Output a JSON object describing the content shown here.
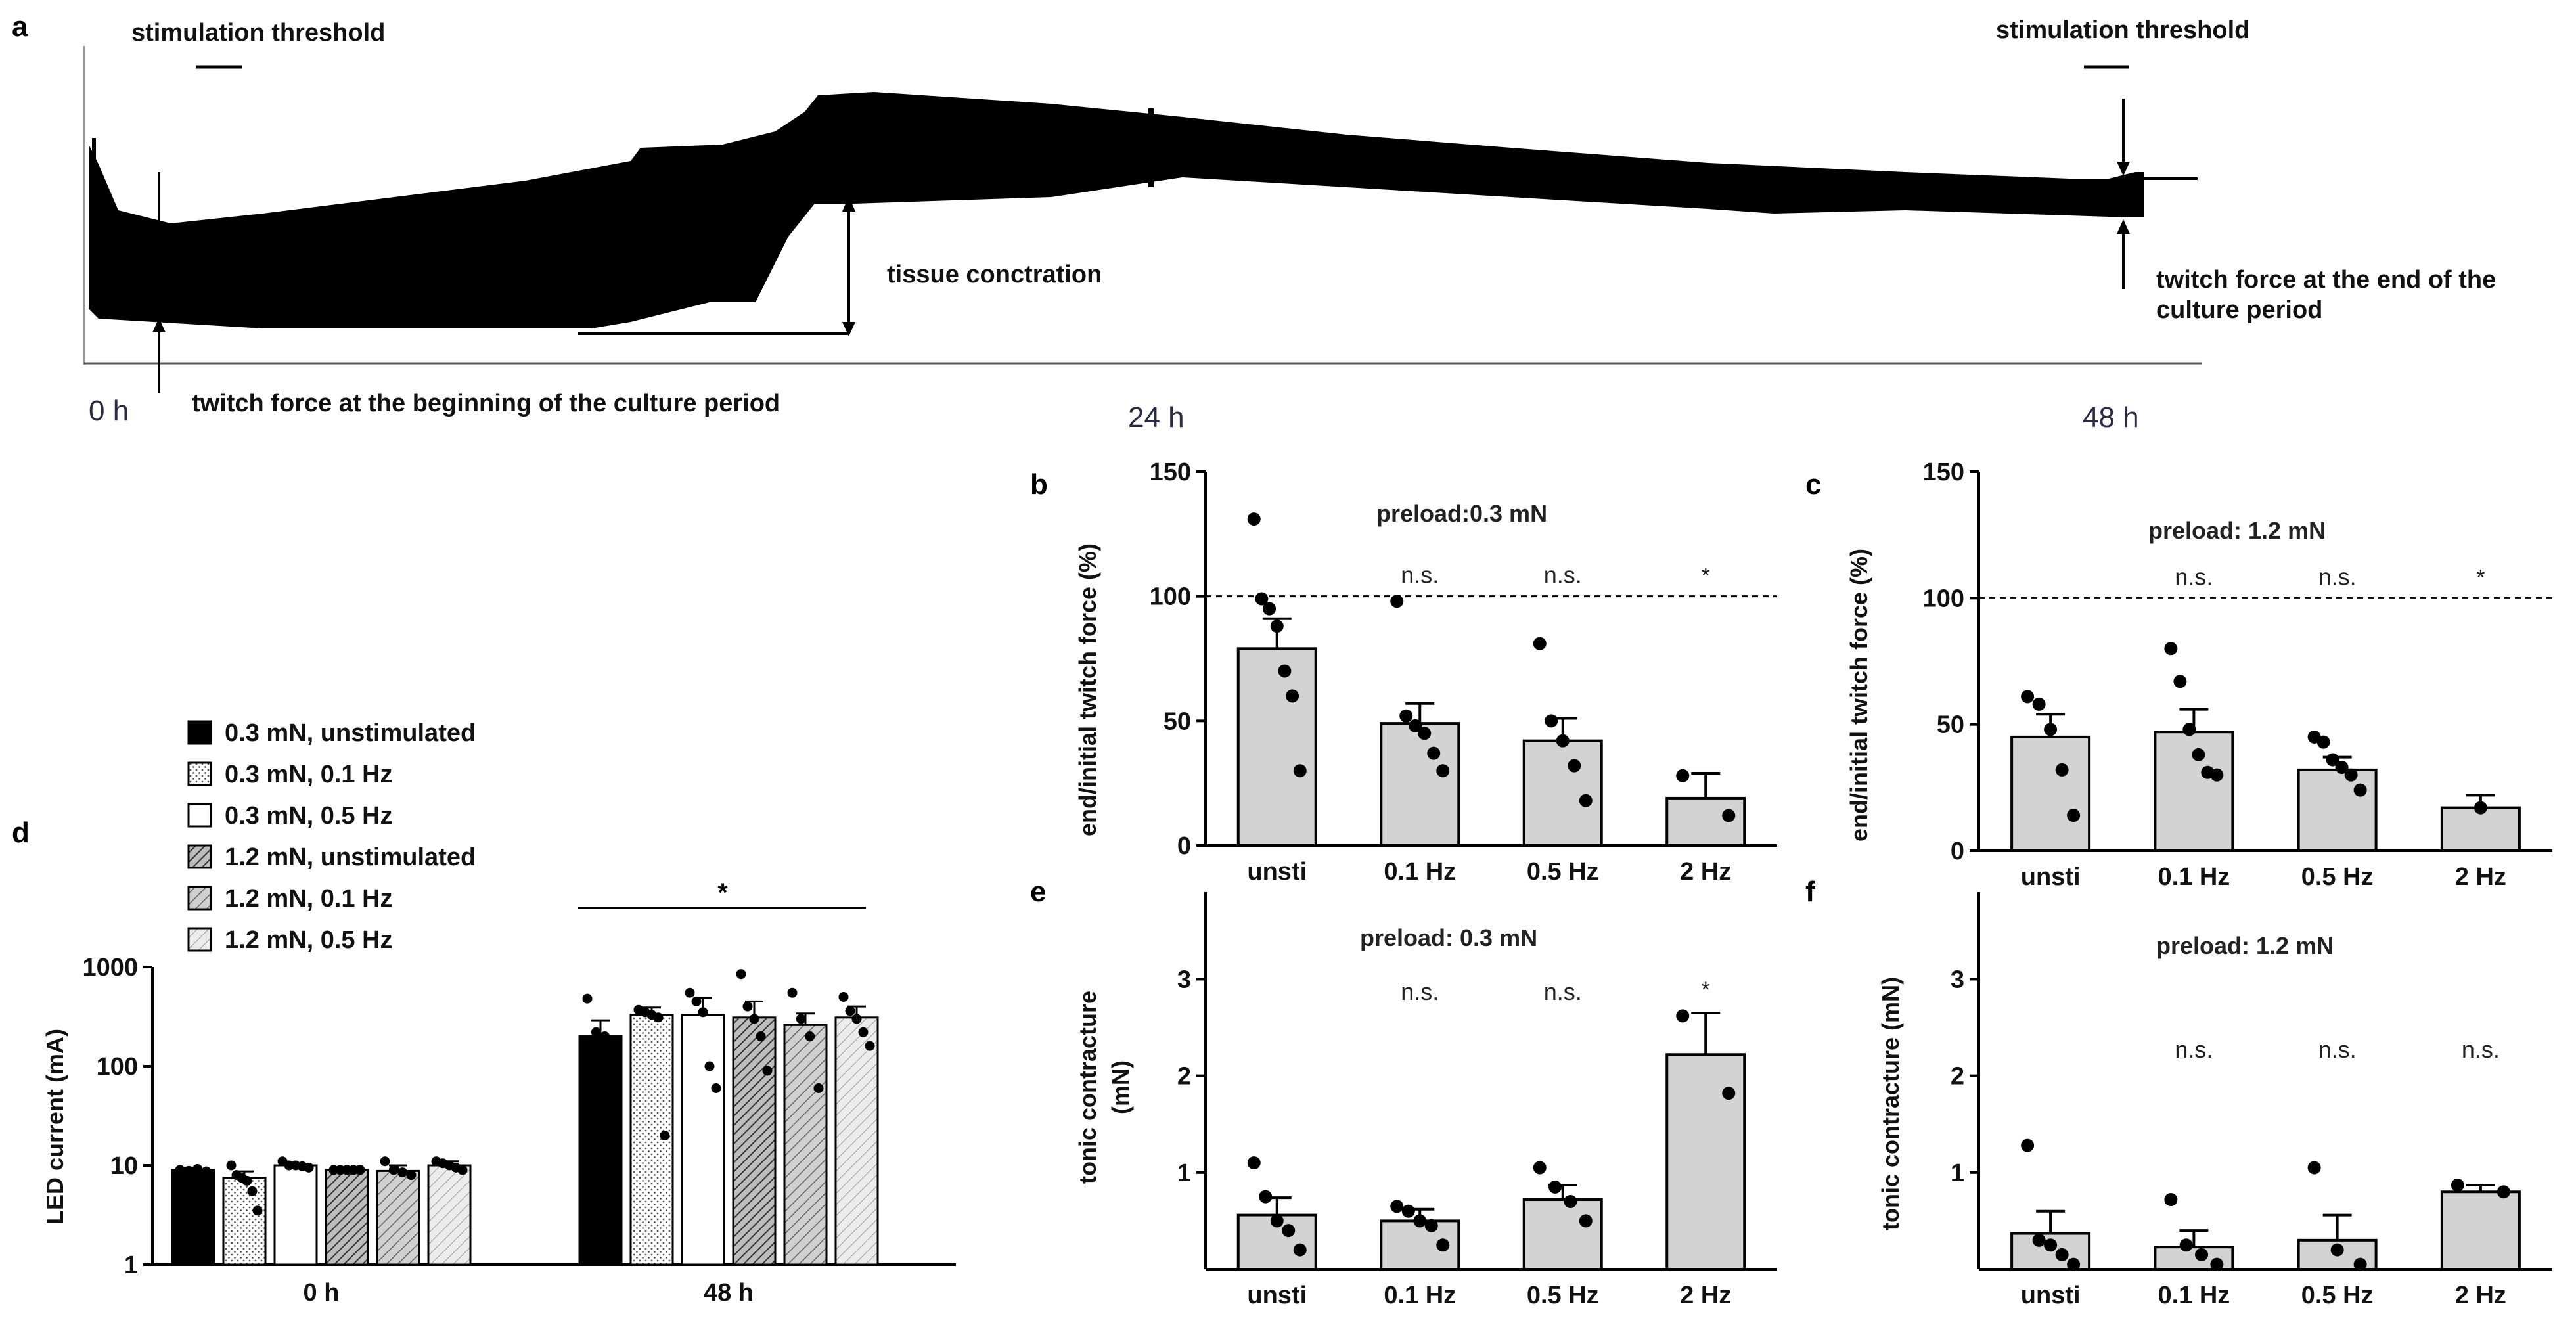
{
  "panels": {
    "a": {
      "letter": "a",
      "stim_left": "stimulation  threshold",
      "stim_right": "stimulation  threshold",
      "tissue": "tissue conctration",
      "twitch_begin": "twitch force at the beginning of the culture period",
      "twitch_end_1": "twitch force at the end of the",
      "twitch_end_2": "culture period",
      "t0": "0 h",
      "t24": "24 h",
      "t48": "48 h"
    },
    "b": {
      "letter": "b",
      "preload": "preload:0.3 mN",
      "ylabel": "end/initial twitch force (%)"
    },
    "c": {
      "letter": "c",
      "preload": "preload: 1.2 mN",
      "ylabel": "end/initial twitch force (%)"
    },
    "d": {
      "letter": "d",
      "ylabel": "LED current (mA)",
      "star": "*"
    },
    "e": {
      "letter": "e",
      "preload": "preload: 0.3 mN",
      "ylabel_1": "tonic contracture",
      "ylabel_2": "(mN)"
    },
    "f": {
      "letter": "f",
      "preload": "preload: 1.2 mN",
      "ylabel": "tonic contracture (mN)"
    }
  },
  "legend": [
    {
      "label": "0.3 mN, unstimulated",
      "pattern": "solid-black"
    },
    {
      "label": "0.3 mN, 0.1 Hz",
      "pattern": "dots"
    },
    {
      "label": "0.3 mN, 0.5 Hz",
      "pattern": "white"
    },
    {
      "label": "1.2 mN, unstimulated",
      "pattern": "hatch-dense"
    },
    {
      "label": "1.2 mN, 0.1 Hz",
      "pattern": "hatch-medium"
    },
    {
      "label": "1.2 mN, 0.5 Hz",
      "pattern": "hatch-light"
    }
  ],
  "colors": {
    "bar_fill": "#d3d3d3",
    "ink": "#000000",
    "axis_text": "#111111"
  },
  "chart_data": [
    {
      "id": "b",
      "type": "bar",
      "title": "preload:0.3 mN",
      "ylabel": "end/initial twitch force (%)",
      "categories": [
        "unsti",
        "0.1 Hz",
        "0.5 Hz",
        "2 Hz"
      ],
      "values": [
        79,
        49,
        42,
        19
      ],
      "sem": [
        12,
        8,
        9,
        10
      ],
      "points": [
        [
          131,
          99,
          95,
          88,
          70,
          60,
          30
        ],
        [
          98,
          52,
          48,
          45,
          37,
          30
        ],
        [
          81,
          50,
          42,
          32,
          18
        ],
        [
          28,
          12
        ]
      ],
      "significance": [
        "",
        "n.s.",
        "n.s.",
        "*"
      ],
      "yticks": [
        0,
        50,
        100,
        150
      ],
      "ylim": [
        0,
        150
      ],
      "reference_line": 100
    },
    {
      "id": "c",
      "type": "bar",
      "title": "preload: 1.2 mN",
      "ylabel": "end/initial twitch force (%)",
      "categories": [
        "unsti",
        "0.1 Hz",
        "0.5 Hz",
        "2 Hz"
      ],
      "values": [
        45,
        47,
        32,
        17
      ],
      "sem": [
        9,
        9,
        5,
        5
      ],
      "points": [
        [
          61,
          58,
          48,
          32,
          14
        ],
        [
          80,
          67,
          48,
          38,
          31,
          30
        ],
        [
          45,
          43,
          36,
          33,
          30,
          24
        ],
        [
          17
        ]
      ],
      "significance": [
        "",
        "n.s.",
        "n.s.",
        "*"
      ],
      "yticks": [
        0,
        50,
        100,
        150
      ],
      "ylim": [
        0,
        150
      ],
      "reference_line": 100
    },
    {
      "id": "d",
      "type": "bar",
      "yscale": "log",
      "ylabel": "LED current (mA)",
      "groups": [
        "0 h",
        "48 h"
      ],
      "series": [
        {
          "name": "0.3 mN, unstimulated",
          "values": [
            9,
            200
          ],
          "sem": [
            0.5,
            90
          ],
          "points": [
            [
              9,
              8.8,
              9.2,
              8.7
            ],
            [
              480,
              220,
              200,
              180
            ]
          ]
        },
        {
          "name": "0.3 mN, 0.1 Hz",
          "values": [
            7.5,
            330
          ],
          "sem": [
            1.2,
            60
          ],
          "points": [
            [
              10,
              8,
              7.5,
              7,
              5.5,
              3.5
            ],
            [
              370,
              350,
              330,
              310,
              20
            ]
          ]
        },
        {
          "name": "0.3 mN, 0.5 Hz",
          "values": [
            10,
            330
          ],
          "sem": [
            0.5,
            160
          ],
          "points": [
            [
              11,
              10,
              10,
              9.8,
              9.5
            ],
            [
              550,
              450,
              350,
              100,
              60
            ]
          ]
        },
        {
          "name": "1.2 mN, unstimulated",
          "values": [
            9,
            310
          ],
          "sem": [
            0.1,
            140
          ],
          "points": [
            [
              9,
              9,
              9,
              9,
              9
            ],
            [
              850,
              400,
              300,
              200,
              90
            ]
          ]
        },
        {
          "name": "1.2 mN, 0.1 Hz",
          "values": [
            8.8,
            260
          ],
          "sem": [
            1.2,
            80
          ],
          "points": [
            [
              11,
              9,
              8.5,
              8
            ],
            [
              550,
              300,
              200,
              60
            ]
          ]
        },
        {
          "name": "1.2 mN, 0.5 Hz",
          "values": [
            10,
            310
          ],
          "sem": [
            1,
            90
          ],
          "points": [
            [
              11,
              10.5,
              10,
              9.5,
              9
            ],
            [
              500,
              360,
              300,
              220,
              160
            ]
          ]
        }
      ],
      "yticks": [
        1,
        10,
        100,
        1000
      ],
      "ytick_labels": [
        "1",
        "10",
        "100",
        "1000"
      ],
      "ylim": [
        1,
        1000
      ],
      "significance_bar": {
        "group": "48 h",
        "label": "*"
      }
    },
    {
      "id": "e",
      "type": "bar",
      "title": "preload: 0.3 mN",
      "ylabel": "tonic contracture (mN)",
      "categories": [
        "unsti",
        "0.1 Hz",
        "0.5 Hz",
        "2 Hz"
      ],
      "values": [
        0.56,
        0.5,
        0.72,
        2.22
      ],
      "sem": [
        0.18,
        0.12,
        0.15,
        0.43
      ],
      "points": [
        [
          1.1,
          0.75,
          0.5,
          0.4,
          0.2
        ],
        [
          0.65,
          0.6,
          0.5,
          0.45,
          0.25
        ],
        [
          1.05,
          0.85,
          0.7,
          0.5
        ],
        [
          2.62,
          1.82
        ]
      ],
      "significance": [
        "",
        "n.s.",
        "n.s.",
        "*"
      ],
      "yticks": [
        1,
        2,
        3
      ],
      "ylim": [
        0,
        3.9
      ]
    },
    {
      "id": "f",
      "type": "bar",
      "title": "preload: 1.2 mN",
      "ylabel": "tonic contracture (mN)",
      "categories": [
        "unsti",
        "0.1 Hz",
        "0.5 Hz",
        "2 Hz"
      ],
      "values": [
        0.37,
        0.23,
        0.3,
        0.8
      ],
      "sem": [
        0.23,
        0.17,
        0.26,
        0.07
      ],
      "points": [
        [
          1.28,
          0.3,
          0.25,
          0.15,
          0.05
        ],
        [
          0.72,
          0.25,
          0.15,
          0.05
        ],
        [
          1.05,
          0.2,
          0.05
        ],
        [
          0.87,
          0.8
        ]
      ],
      "significance": [
        "",
        "n.s.",
        "n.s.",
        "n.s."
      ],
      "yticks": [
        1,
        2,
        3
      ],
      "ylim": [
        0,
        3.9
      ]
    }
  ]
}
